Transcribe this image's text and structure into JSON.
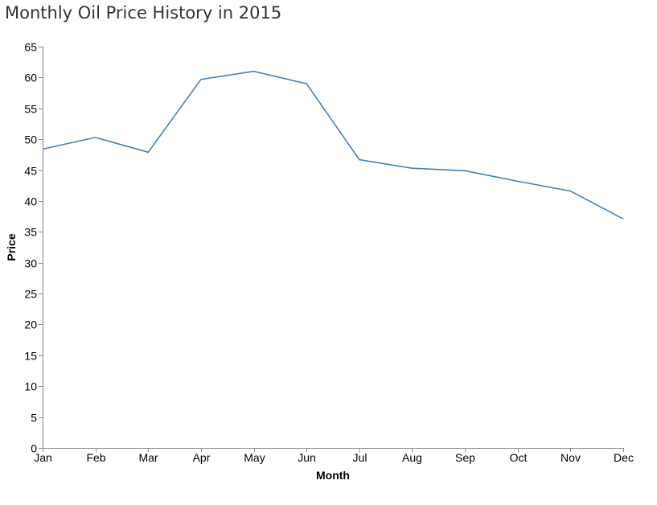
{
  "chart_data": {
    "type": "line",
    "title": "Monthly Oil Price History in 2015",
    "xlabel": "Month",
    "ylabel": "Price",
    "categories": [
      "Jan",
      "Feb",
      "Mar",
      "Apr",
      "May",
      "Jun",
      "Jul",
      "Aug",
      "Sep",
      "Oct",
      "Nov",
      "Dec"
    ],
    "series": [
      {
        "values": [
          48.4,
          50.3,
          47.9,
          59.7,
          61.0,
          59.0,
          46.7,
          45.3,
          44.9,
          43.2,
          41.6,
          37.1
        ],
        "color": "#4682b4"
      }
    ],
    "ylim": [
      0,
      65
    ],
    "yticks": [
      0,
      5,
      10,
      15,
      20,
      25,
      30,
      35,
      40,
      45,
      50,
      55,
      60,
      65
    ],
    "grid": false,
    "legend": "none"
  }
}
